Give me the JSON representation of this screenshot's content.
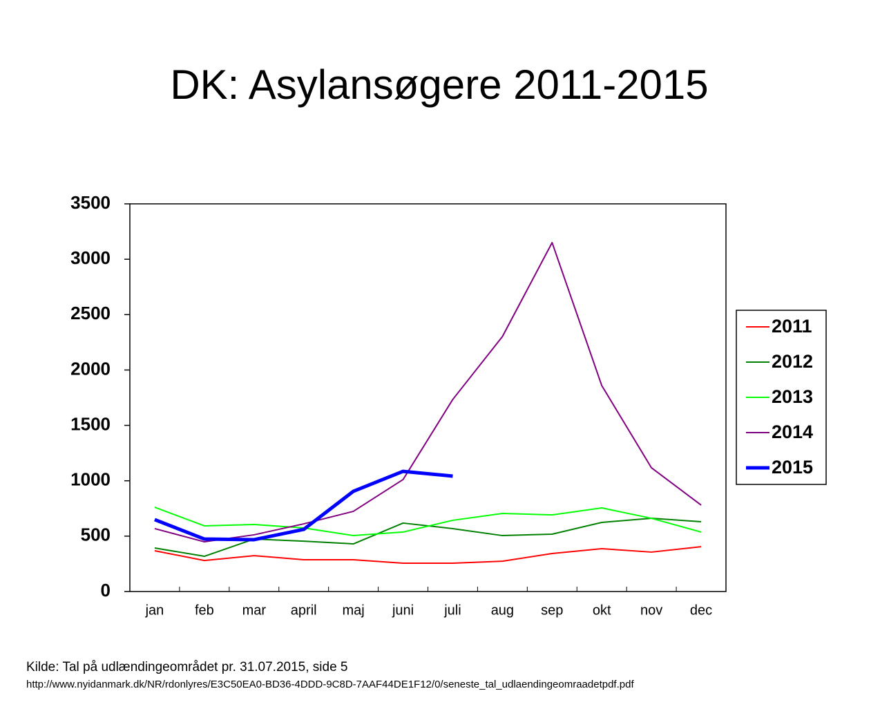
{
  "chart_data": {
    "type": "line",
    "title": "DK: Asylansøgere 2011-2015",
    "categories": [
      "jan",
      "feb",
      "mar",
      "april",
      "maj",
      "juni",
      "juli",
      "aug",
      "sep",
      "okt",
      "nov",
      "dec"
    ],
    "series": [
      {
        "name": "2011",
        "color": "#ff0000",
        "linewidth": 2,
        "values": [
          368,
          280,
          324,
          287,
          287,
          256,
          256,
          274,
          343,
          387,
          356,
          405
        ]
      },
      {
        "name": "2012",
        "color": "#008000",
        "linewidth": 2,
        "values": [
          393,
          318,
          474,
          455,
          430,
          618,
          568,
          505,
          518,
          624,
          661,
          630
        ]
      },
      {
        "name": "2013",
        "color": "#00ff00",
        "linewidth": 2,
        "values": [
          761,
          593,
          605,
          574,
          505,
          537,
          643,
          705,
          692,
          755,
          661,
          537
        ]
      },
      {
        "name": "2014",
        "color": "#800080",
        "linewidth": 2,
        "values": [
          568,
          449,
          512,
          611,
          724,
          1011,
          1734,
          2302,
          3150,
          1859,
          1117,
          780
        ]
      },
      {
        "name": "2015",
        "color": "#0000ff",
        "linewidth": 5,
        "values": [
          649,
          474,
          468,
          561,
          905,
          1085,
          1042,
          null,
          null,
          null,
          null,
          null
        ]
      }
    ],
    "ylim": [
      0,
      3500
    ],
    "yticks": [
      0,
      500,
      1000,
      1500,
      2000,
      2500,
      3000,
      3500
    ],
    "legend": "right",
    "notes": [
      "Kilde: Tal på udlændingeområdet pr. 31.07.2015, side 5",
      "http://www.nyidanmark.dk/NR/rdonlyres/E3C50EA0-BD36-4DDD-9C8D-7AAF44DE1F12/0/seneste_tal_udlaendingeomraadetpdf.pdf"
    ]
  }
}
